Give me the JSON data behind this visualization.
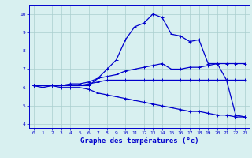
{
  "title": "",
  "xlabel": "Graphe des températures (°c)",
  "line1": [
    6.1,
    6.0,
    6.1,
    6.1,
    6.1,
    6.1,
    6.1,
    6.5,
    7.0,
    7.5,
    8.6,
    9.3,
    9.5,
    10.0,
    9.8,
    8.9,
    8.8,
    8.5,
    8.6,
    7.3,
    7.3,
    6.4,
    4.5,
    4.4
  ],
  "line2": [
    6.1,
    6.1,
    6.1,
    6.1,
    6.2,
    6.2,
    6.3,
    6.5,
    6.6,
    6.7,
    6.9,
    7.0,
    7.1,
    7.2,
    7.3,
    7.0,
    7.0,
    7.1,
    7.1,
    7.2,
    7.3,
    7.3,
    7.3,
    7.3
  ],
  "line3": [
    6.1,
    6.1,
    6.1,
    6.1,
    6.1,
    6.1,
    6.2,
    6.3,
    6.4,
    6.4,
    6.4,
    6.4,
    6.4,
    6.4,
    6.4,
    6.4,
    6.4,
    6.4,
    6.4,
    6.4,
    6.4,
    6.4,
    6.4,
    6.4
  ],
  "line4": [
    6.1,
    6.1,
    6.1,
    6.0,
    6.0,
    6.0,
    5.9,
    5.7,
    5.6,
    5.5,
    5.4,
    5.3,
    5.2,
    5.1,
    5.0,
    4.9,
    4.8,
    4.7,
    4.7,
    4.6,
    4.5,
    4.5,
    4.4,
    4.4
  ],
  "x": [
    0,
    1,
    2,
    3,
    4,
    5,
    6,
    7,
    8,
    9,
    10,
    11,
    12,
    13,
    14,
    15,
    16,
    17,
    18,
    19,
    20,
    21,
    22,
    23
  ],
  "xlim": [
    -0.5,
    23.5
  ],
  "ylim": [
    3.8,
    10.5
  ],
  "yticks": [
    4,
    5,
    6,
    7,
    8,
    9,
    10
  ],
  "xticks": [
    0,
    1,
    2,
    3,
    4,
    5,
    6,
    7,
    8,
    9,
    10,
    11,
    12,
    13,
    14,
    15,
    16,
    17,
    18,
    19,
    20,
    21,
    22,
    23
  ],
  "line_color": "#0000cc",
  "bg_color": "#d8f0f0",
  "grid_color": "#aacece",
  "marker": "+",
  "marker_size": 3.5,
  "line_width": 0.9,
  "tick_fontsize": 4.5,
  "label_fontsize": 6.5
}
